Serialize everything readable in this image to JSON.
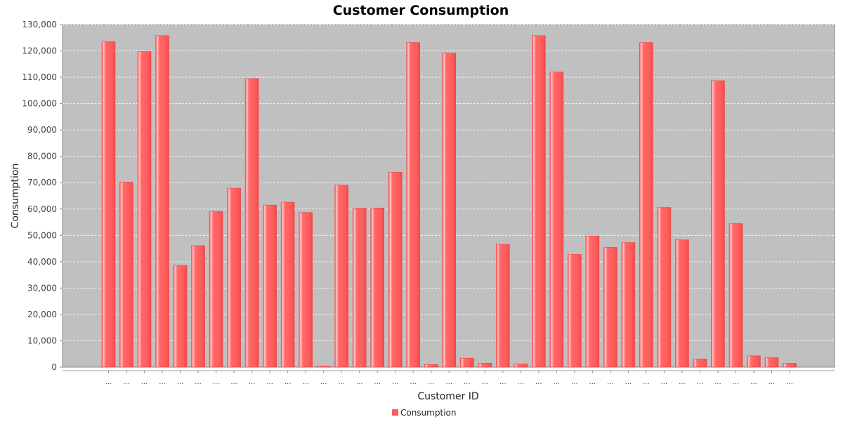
{
  "chart_data": {
    "type": "bar",
    "title": "Customer Consumption",
    "xlabel": "Customer ID",
    "ylabel": "Consumption",
    "ylim": [
      0,
      130000
    ],
    "yticks": [
      0,
      10000,
      20000,
      30000,
      40000,
      50000,
      60000,
      70000,
      80000,
      90000,
      100000,
      110000,
      120000,
      130000
    ],
    "ytick_labels": [
      "0",
      "10,000",
      "20,000",
      "30,000",
      "40,000",
      "50,000",
      "60,000",
      "70,000",
      "80,000",
      "90,000",
      "100,000",
      "110,000",
      "120,000",
      "130,000"
    ],
    "categories": [
      "...",
      "...",
      "...",
      "...",
      "...",
      "...",
      "...",
      "...",
      "...",
      "...",
      "...",
      "...",
      "...",
      "...",
      "...",
      "...",
      "...",
      "...",
      "...",
      "...",
      "...",
      "...",
      "...",
      "...",
      "...",
      "...",
      "...",
      "...",
      "...",
      "...",
      "...",
      "...",
      "...",
      "...",
      "...",
      "...",
      "...",
      "...",
      "..."
    ],
    "series": [
      {
        "name": "Consumption",
        "color": "#ff5b5b",
        "values": [
          123500,
          70200,
          119800,
          125800,
          38600,
          46100,
          59100,
          67900,
          109500,
          61500,
          62600,
          58700,
          400,
          69100,
          60300,
          60400,
          74000,
          123200,
          1000,
          119200,
          3400,
          1500,
          46600,
          1200,
          125800,
          112000,
          42800,
          49800,
          45500,
          47300,
          123200,
          60600,
          48300,
          3100,
          108700,
          54500,
          4300,
          3600,
          1500
        ]
      }
    ],
    "grid": true,
    "plot_background": "#c0c0c0",
    "legend": {
      "position": "bottom",
      "entries": [
        "Consumption"
      ]
    }
  }
}
